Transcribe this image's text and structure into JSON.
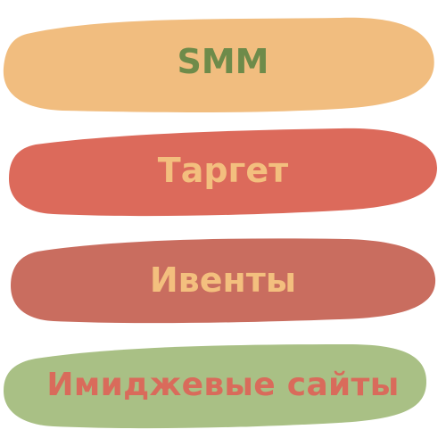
{
  "items": [
    {
      "label": "SMM"
    },
    {
      "label": "Таргет"
    },
    {
      "label": "Ивенты"
    },
    {
      "label": "Имиджевые сайты"
    }
  ],
  "colors": {
    "stroke_1": "#f1bd7f",
    "stroke_2": "#dc6a5b",
    "stroke_3": "#c96d5f",
    "stroke_4": "#a9c085",
    "text_green": "#6e8b4a",
    "text_peach": "#f3bf7e",
    "text_red": "#d96b5b"
  }
}
